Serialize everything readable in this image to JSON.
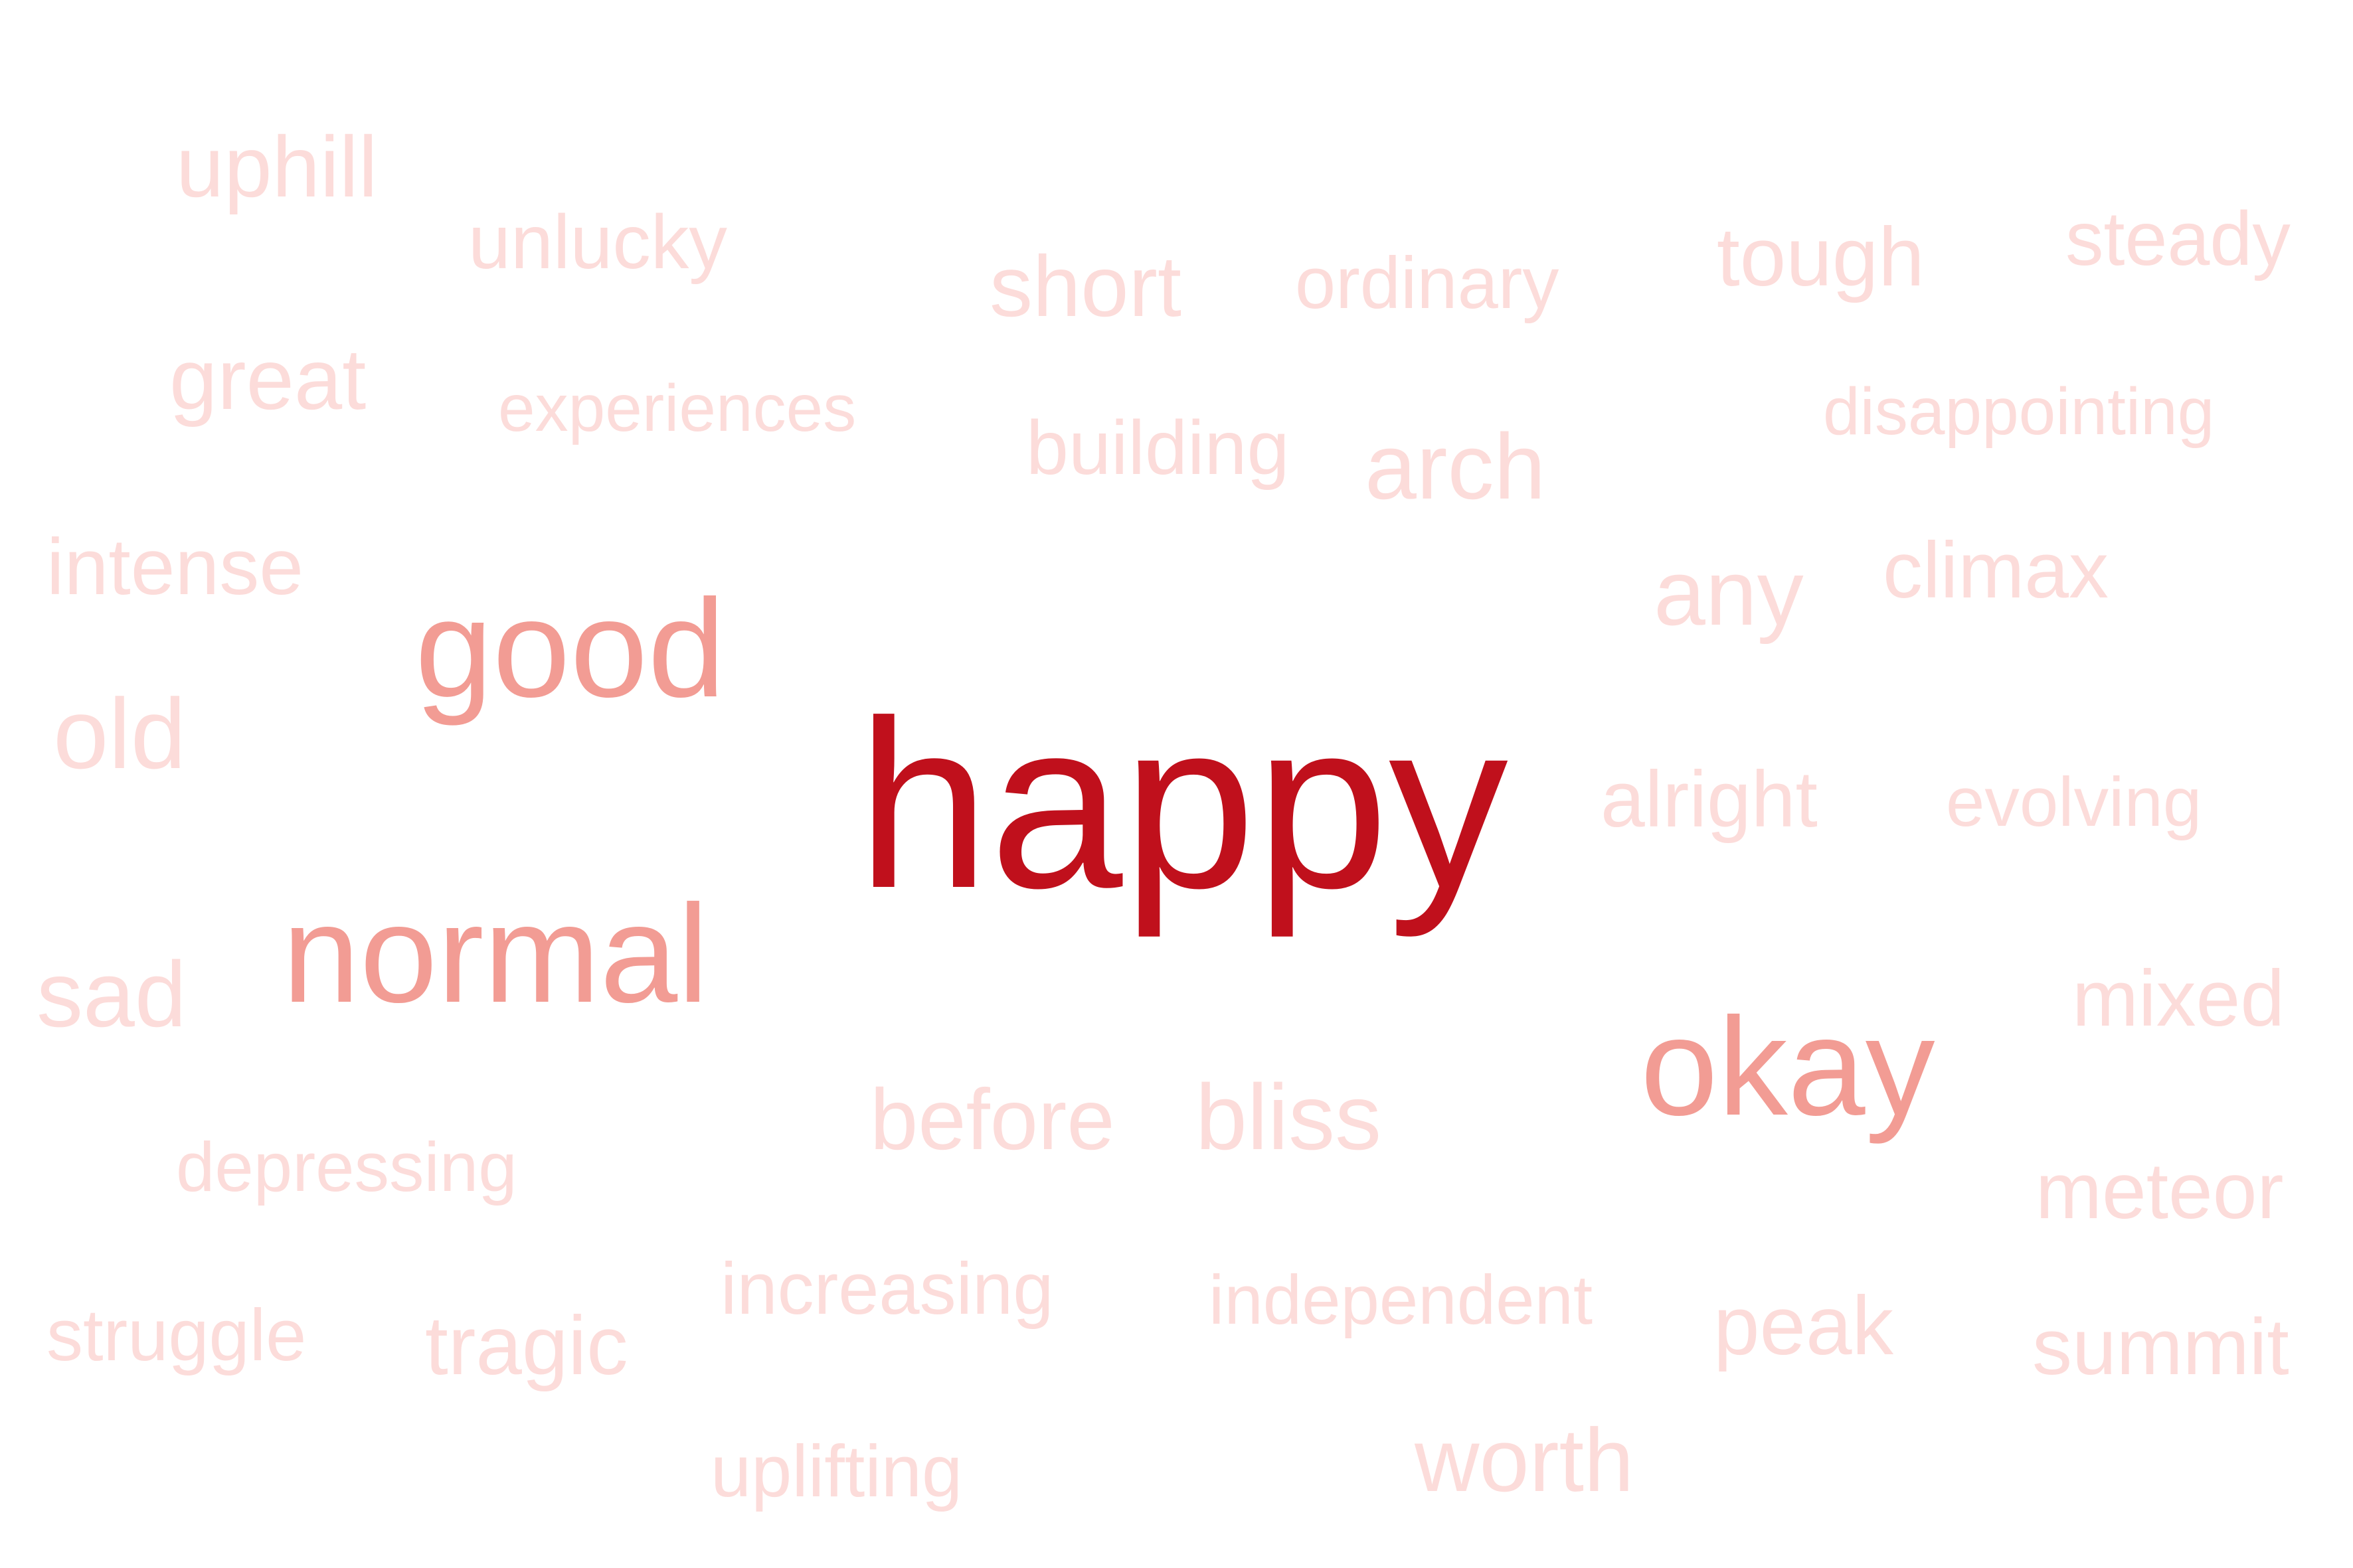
{
  "palette": {
    "dark": "#c0101c",
    "mid": "#f29c94",
    "light": "#fcdcda"
  },
  "words": [
    {
      "text": "happy",
      "weight": 1.0
    },
    {
      "text": "good",
      "weight": 0.45
    },
    {
      "text": "normal",
      "weight": 0.45
    },
    {
      "text": "okay",
      "weight": 0.45
    },
    {
      "text": "uphill",
      "weight": 0.1
    },
    {
      "text": "unlucky",
      "weight": 0.1
    },
    {
      "text": "short",
      "weight": 0.1
    },
    {
      "text": "ordinary",
      "weight": 0.1
    },
    {
      "text": "tough",
      "weight": 0.1
    },
    {
      "text": "steady",
      "weight": 0.1
    },
    {
      "text": "great",
      "weight": 0.1
    },
    {
      "text": "experiences",
      "weight": 0.1
    },
    {
      "text": "building",
      "weight": 0.1
    },
    {
      "text": "arch",
      "weight": 0.1
    },
    {
      "text": "disappointing",
      "weight": 0.1
    },
    {
      "text": "intense",
      "weight": 0.1
    },
    {
      "text": "any",
      "weight": 0.1
    },
    {
      "text": "climax",
      "weight": 0.1
    },
    {
      "text": "old",
      "weight": 0.1
    },
    {
      "text": "alright",
      "weight": 0.1
    },
    {
      "text": "evolving",
      "weight": 0.1
    },
    {
      "text": "sad",
      "weight": 0.1
    },
    {
      "text": "mixed",
      "weight": 0.1
    },
    {
      "text": "before",
      "weight": 0.1
    },
    {
      "text": "bliss",
      "weight": 0.1
    },
    {
      "text": "depressing",
      "weight": 0.1
    },
    {
      "text": "meteor",
      "weight": 0.1
    },
    {
      "text": "increasing",
      "weight": 0.1
    },
    {
      "text": "independent",
      "weight": 0.1
    },
    {
      "text": "struggle",
      "weight": 0.1
    },
    {
      "text": "tragic",
      "weight": 0.1
    },
    {
      "text": "peak",
      "weight": 0.1
    },
    {
      "text": "summit",
      "weight": 0.1
    },
    {
      "text": "uplifting",
      "weight": 0.1
    },
    {
      "text": "worth",
      "weight": 0.1
    }
  ]
}
